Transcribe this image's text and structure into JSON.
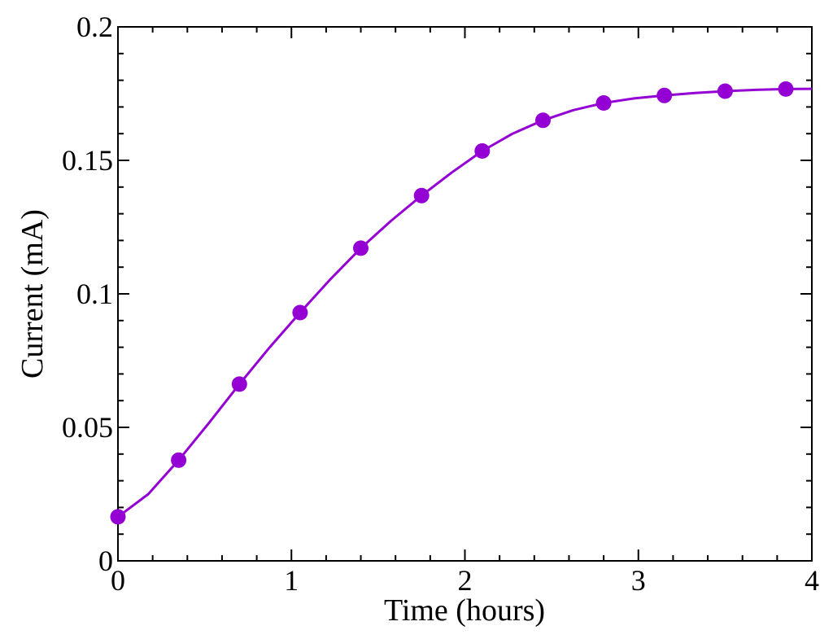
{
  "chart_data": {
    "type": "line",
    "title": "",
    "xlabel": "Time (hours)",
    "ylabel": "Current (mA)",
    "xlim": [
      0,
      4
    ],
    "ylim": [
      0,
      0.2
    ],
    "x_ticks": [
      0,
      1,
      2,
      3,
      4
    ],
    "x_tick_labels": [
      "0",
      "1",
      "2",
      "3",
      "4"
    ],
    "y_ticks": [
      0,
      0.05,
      0.1,
      0.15,
      0.2
    ],
    "y_tick_labels": [
      "0",
      "0.05",
      "0.1",
      "0.15",
      "0.2"
    ],
    "grid": false,
    "legend": "none",
    "series": [
      {
        "style": "markers",
        "color": "#9400D3",
        "x": [
          0,
          0.35,
          0.7,
          1.05,
          1.4,
          1.75,
          2.1,
          2.45,
          2.8,
          3.15,
          3.5,
          3.85
        ],
        "y": [
          0.0165,
          0.0377,
          0.0662,
          0.093,
          0.1171,
          0.1368,
          0.1535,
          0.165,
          0.1715,
          0.1743,
          0.1759,
          0.1767
        ]
      },
      {
        "style": "line",
        "color": "#9400D3",
        "x": [
          0,
          0.175,
          0.35,
          0.525,
          0.7,
          0.875,
          1.05,
          1.225,
          1.4,
          1.575,
          1.75,
          1.925,
          2.1,
          2.275,
          2.45,
          2.625,
          2.8,
          2.975,
          3.15,
          3.325,
          3.5,
          3.675,
          3.85,
          4.0
        ],
        "y": [
          0.0165,
          0.025,
          0.0377,
          0.0517,
          0.0662,
          0.08,
          0.093,
          0.1055,
          0.1171,
          0.1274,
          0.1368,
          0.1455,
          0.1535,
          0.16,
          0.165,
          0.1688,
          0.1715,
          0.1732,
          0.1743,
          0.1752,
          0.1759,
          0.1764,
          0.1767,
          0.1768
        ]
      }
    ]
  }
}
